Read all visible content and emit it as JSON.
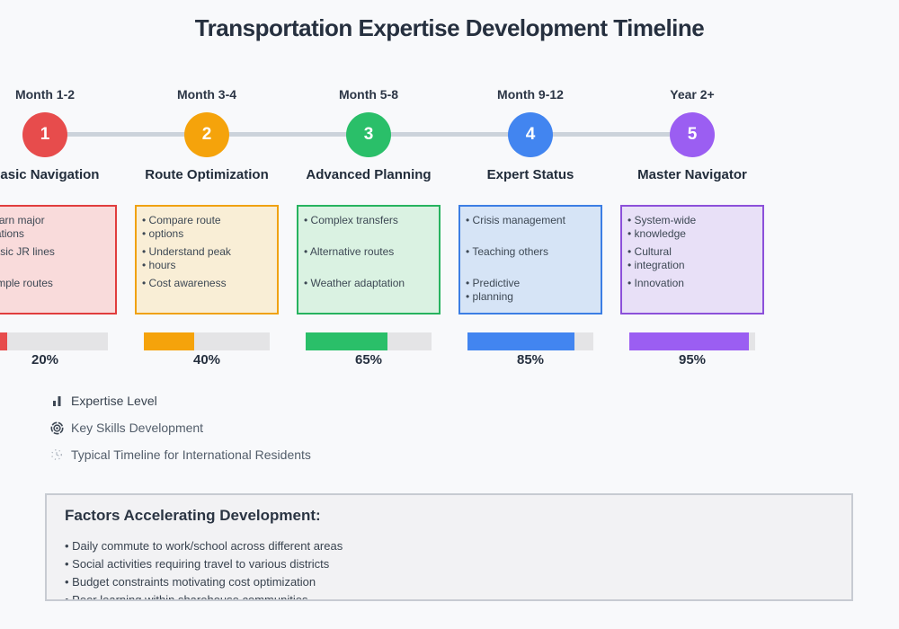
{
  "title": "Transportation Expertise Development Timeline",
  "stages": [
    {
      "period": "Month 1-2",
      "number": "1",
      "name": "Basic Navigation",
      "color": "#e74c4c",
      "card_border": "#e13d3d",
      "card_bg": "#f9dbdb",
      "items": [
        [
          "• Learn major",
          "• stations"
        ],
        [
          "• Basic JR lines"
        ],
        [
          "• Simple routes"
        ]
      ],
      "progress": 20,
      "progress_label": "20%"
    },
    {
      "period": "Month 3-4",
      "number": "2",
      "name": "Route Optimization",
      "color": "#f5a30b",
      "card_border": "#f0a212",
      "card_bg": "#f9eed6",
      "items": [
        [
          "• Compare route",
          "• options"
        ],
        [
          "• Understand peak",
          "• hours"
        ],
        [
          "• Cost awareness"
        ]
      ],
      "progress": 40,
      "progress_label": "40%"
    },
    {
      "period": "Month 5-8",
      "number": "3",
      "name": "Advanced Planning",
      "color": "#2abf69",
      "card_border": "#27b35f",
      "card_bg": "#daf2e2",
      "items": [
        [
          "• Complex transfers"
        ],
        [
          "• Alternative routes"
        ],
        [
          "• Weather adaptation"
        ]
      ],
      "progress": 65,
      "progress_label": "65%"
    },
    {
      "period": "Month 9-12",
      "number": "4",
      "name": "Expert Status",
      "color": "#4285f0",
      "card_border": "#3c7ee4",
      "card_bg": "#d6e4f6",
      "items": [
        [
          "• Crisis management"
        ],
        [
          "• Teaching others"
        ],
        [
          "• Predictive",
          "• planning"
        ]
      ],
      "progress": 85,
      "progress_label": "85%"
    },
    {
      "period": "Year 2+",
      "number": "5",
      "name": "Master Navigator",
      "color": "#9b5ef2",
      "card_border": "#8c50da",
      "card_bg": "#e8e0f7",
      "items": [
        [
          "• System-wide",
          "• knowledge"
        ],
        [
          "• Cultural",
          "• integration"
        ],
        [
          "• Innovation"
        ]
      ],
      "progress": 95,
      "progress_label": "95%"
    }
  ],
  "legend": [
    {
      "icon": "bar-chart-icon",
      "label": "Expertise Level"
    },
    {
      "icon": "target-icon",
      "label": "Key Skills Development"
    },
    {
      "icon": "dotted-clock-icon",
      "label": "Typical Timeline for International Residents"
    }
  ],
  "factors": {
    "heading": "Factors Accelerating Development:",
    "items": [
      "• Daily commute to work/school across different areas",
      "• Social activities requiring travel to various districts",
      "• Budget constraints motivating cost optimization",
      "• Peer learning within sharehouse communities"
    ]
  },
  "colors": {
    "timeline_line": "#ccd3db",
    "bar_track": "#e4e4e6",
    "page_bg": "#f8f9fb",
    "title_text": "#26303f"
  }
}
